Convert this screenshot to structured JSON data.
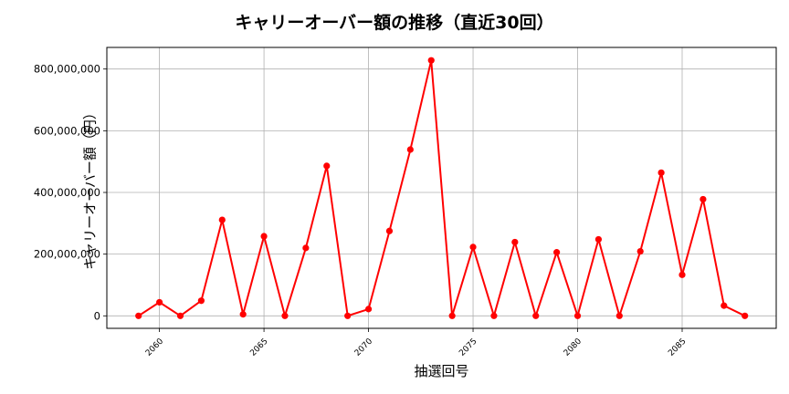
{
  "chart_data": {
    "type": "line",
    "title": "キャリーオーバー額の推移（直近30回）",
    "xlabel": "抽選回号",
    "ylabel": "キャリーオーバー額（円）",
    "x": [
      2059,
      2060,
      2061,
      2062,
      2063,
      2064,
      2065,
      2066,
      2067,
      2068,
      2069,
      2070,
      2071,
      2072,
      2073,
      2074,
      2075,
      2076,
      2077,
      2078,
      2079,
      2080,
      2081,
      2082,
      2083,
      2084,
      2085,
      2086,
      2087,
      2088
    ],
    "series": [
      {
        "name": "キャリーオーバー額",
        "color": "#ff0000",
        "marker": "circle",
        "values": [
          0,
          44000000,
          0,
          49000000,
          311000000,
          5000000,
          258000000,
          0,
          220000000,
          486000000,
          0,
          22000000,
          275000000,
          539000000,
          828000000,
          0,
          223000000,
          0,
          239000000,
          0,
          206000000,
          0,
          248000000,
          0,
          209000000,
          464000000,
          133000000,
          378000000,
          33000000,
          0
        ]
      }
    ],
    "xticks": [
      2060,
      2065,
      2070,
      2075,
      2080,
      2085
    ],
    "yticks": [
      0,
      200000000,
      400000000,
      600000000,
      800000000
    ],
    "ytick_labels": [
      "0",
      "200,000,000",
      "400,000,000",
      "600,000,000",
      "800,000,000"
    ],
    "xlim": [
      2057.5,
      2090.0
    ],
    "ylim": [
      -41000000,
      872000000
    ],
    "grid": true,
    "legend": null
  },
  "colors": {
    "line": "#ff0000",
    "grid": "#b0b0b0",
    "axis": "#000000"
  }
}
